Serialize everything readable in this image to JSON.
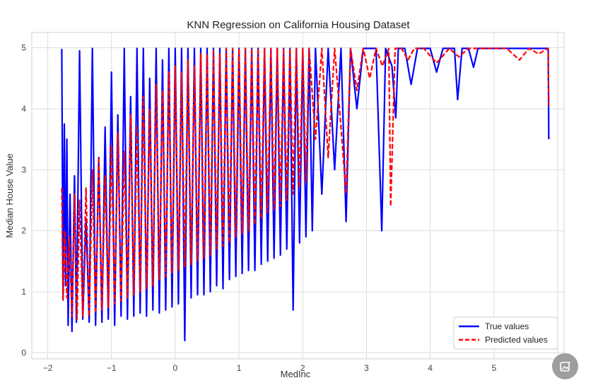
{
  "chart_data": {
    "type": "line",
    "title": "KNN Regression on California Housing Dataset",
    "xlabel": "MedInc",
    "ylabel": "Median House Value",
    "xlim": [
      -2.25,
      6.1
    ],
    "ylim": [
      -0.1,
      5.25
    ],
    "xticks": [
      -2,
      -1,
      0,
      1,
      2,
      3,
      4,
      5,
      6
    ],
    "xtick_labels": [
      "−2",
      "−1",
      "0",
      "1",
      "2",
      "3",
      "4",
      "5",
      "6"
    ],
    "yticks": [
      0,
      1,
      2,
      3,
      4,
      5
    ],
    "ytick_labels": [
      "0",
      "1",
      "2",
      "3",
      "4",
      "5"
    ],
    "grid": true,
    "legend_position": "lower-right",
    "series": [
      {
        "name": "True values",
        "color": "#0000ff",
        "style": "solid",
        "x": [
          -1.78,
          -1.76,
          -1.74,
          -1.72,
          -1.7,
          -1.68,
          -1.65,
          -1.62,
          -1.58,
          -1.55,
          -1.5,
          -1.45,
          -1.4,
          -1.35,
          -1.3,
          -1.25,
          -1.2,
          -1.15,
          -1.1,
          -1.05,
          -1.0,
          -0.95,
          -0.9,
          -0.85,
          -0.8,
          -0.75,
          -0.7,
          -0.65,
          -0.6,
          -0.55,
          -0.5,
          -0.45,
          -0.4,
          -0.35,
          -0.3,
          -0.25,
          -0.2,
          -0.15,
          -0.1,
          -0.05,
          0.0,
          0.05,
          0.1,
          0.15,
          0.2,
          0.25,
          0.3,
          0.35,
          0.4,
          0.45,
          0.5,
          0.55,
          0.6,
          0.65,
          0.7,
          0.75,
          0.8,
          0.85,
          0.9,
          0.95,
          1.0,
          1.05,
          1.1,
          1.15,
          1.2,
          1.25,
          1.3,
          1.35,
          1.4,
          1.45,
          1.5,
          1.55,
          1.6,
          1.65,
          1.7,
          1.75,
          1.8,
          1.85,
          1.9,
          1.95,
          2.0,
          2.05,
          2.1,
          2.15,
          2.2,
          2.3,
          2.4,
          2.5,
          2.6,
          2.68,
          2.75,
          2.85,
          2.95,
          3.05,
          3.15,
          3.24,
          3.3,
          3.4,
          3.46,
          3.5,
          3.6,
          3.7,
          3.8,
          3.9,
          4.0,
          4.1,
          4.2,
          4.3,
          4.38,
          4.43,
          4.5,
          4.6,
          4.68,
          4.75,
          4.85,
          5.0,
          5.2,
          5.4,
          5.6,
          5.8,
          5.85,
          5.86
        ],
        "y": [
          4.98,
          0.9,
          3.75,
          1.1,
          3.5,
          0.45,
          2.6,
          0.35,
          2.9,
          0.5,
          4.95,
          0.55,
          2.2,
          0.5,
          4.99,
          0.45,
          3.2,
          0.5,
          3.7,
          0.55,
          4.6,
          0.45,
          3.9,
          0.6,
          4.99,
          0.55,
          4.2,
          0.6,
          4.99,
          0.65,
          4.99,
          0.6,
          4.5,
          0.7,
          4.99,
          0.65,
          4.8,
          0.7,
          4.99,
          0.75,
          4.99,
          0.8,
          4.99,
          0.2,
          4.99,
          0.9,
          4.99,
          0.95,
          4.99,
          0.95,
          4.99,
          1.0,
          4.99,
          1.1,
          4.99,
          1.05,
          4.99,
          1.2,
          4.99,
          1.25,
          4.99,
          1.3,
          4.99,
          1.35,
          4.99,
          1.35,
          4.99,
          1.45,
          4.99,
          1.5,
          4.99,
          1.55,
          4.99,
          1.6,
          4.99,
          1.7,
          4.99,
          0.7,
          4.99,
          1.8,
          4.99,
          1.9,
          4.99,
          2.0,
          4.99,
          2.6,
          4.99,
          3.0,
          4.99,
          2.15,
          4.99,
          4.0,
          4.99,
          4.99,
          4.99,
          2.0,
          4.99,
          4.7,
          3.85,
          4.99,
          4.99,
          4.4,
          4.99,
          4.99,
          4.99,
          4.6,
          4.99,
          4.99,
          4.99,
          4.15,
          4.99,
          4.99,
          4.68,
          4.99,
          4.99,
          4.99,
          4.99,
          4.99,
          4.99,
          4.99,
          4.99,
          3.5
        ]
      },
      {
        "name": "Predicted values",
        "color": "#ff0000",
        "style": "dashed",
        "x": [
          -1.78,
          -1.76,
          -1.73,
          -1.7,
          -1.66,
          -1.62,
          -1.58,
          -1.54,
          -1.5,
          -1.45,
          -1.4,
          -1.35,
          -1.3,
          -1.25,
          -1.2,
          -1.15,
          -1.1,
          -1.05,
          -1.0,
          -0.95,
          -0.9,
          -0.85,
          -0.8,
          -0.75,
          -0.7,
          -0.65,
          -0.6,
          -0.55,
          -0.5,
          -0.45,
          -0.4,
          -0.35,
          -0.3,
          -0.25,
          -0.2,
          -0.15,
          -0.1,
          -0.05,
          0.0,
          0.05,
          0.1,
          0.15,
          0.2,
          0.25,
          0.3,
          0.35,
          0.4,
          0.45,
          0.5,
          0.55,
          0.6,
          0.65,
          0.7,
          0.75,
          0.8,
          0.85,
          0.9,
          0.95,
          1.0,
          1.05,
          1.1,
          1.15,
          1.2,
          1.25,
          1.3,
          1.35,
          1.4,
          1.45,
          1.5,
          1.55,
          1.6,
          1.65,
          1.7,
          1.75,
          1.8,
          1.85,
          1.9,
          1.95,
          2.0,
          2.05,
          2.1,
          2.2,
          2.3,
          2.4,
          2.5,
          2.6,
          2.68,
          2.75,
          2.85,
          2.95,
          3.05,
          3.15,
          3.25,
          3.35,
          3.38,
          3.45,
          3.55,
          3.65,
          3.75,
          3.9,
          4.1,
          4.3,
          4.45,
          4.6,
          4.8,
          5.0,
          5.2,
          5.4,
          5.55,
          5.7,
          5.85,
          5.86
        ],
        "y": [
          2.7,
          0.85,
          2.0,
          0.9,
          1.9,
          0.6,
          2.6,
          0.55,
          2.5,
          0.6,
          2.7,
          0.6,
          3.0,
          0.65,
          3.2,
          0.7,
          2.9,
          0.75,
          3.4,
          0.8,
          3.6,
          0.85,
          3.3,
          0.9,
          3.9,
          0.95,
          3.7,
          1.0,
          4.2,
          1.05,
          4.0,
          1.1,
          4.4,
          1.2,
          4.3,
          1.25,
          4.6,
          1.3,
          4.7,
          1.35,
          4.6,
          1.4,
          4.8,
          1.45,
          4.7,
          1.5,
          4.9,
          1.55,
          4.9,
          1.6,
          4.95,
          1.7,
          4.9,
          1.75,
          4.99,
          1.8,
          4.99,
          1.9,
          4.99,
          1.95,
          4.99,
          2.0,
          4.99,
          2.1,
          4.99,
          2.2,
          4.99,
          2.3,
          4.99,
          2.35,
          4.99,
          2.4,
          4.99,
          2.5,
          4.99,
          2.6,
          4.99,
          2.7,
          4.99,
          2.8,
          4.99,
          3.5,
          4.99,
          3.2,
          4.99,
          3.7,
          2.6,
          4.99,
          4.3,
          4.99,
          4.5,
          4.99,
          4.7,
          4.99,
          2.4,
          4.99,
          4.99,
          4.8,
          4.99,
          4.99,
          4.75,
          4.99,
          4.85,
          4.99,
          4.99,
          4.99,
          4.99,
          4.8,
          4.99,
          4.9,
          4.99,
          4.05
        ]
      }
    ]
  }
}
